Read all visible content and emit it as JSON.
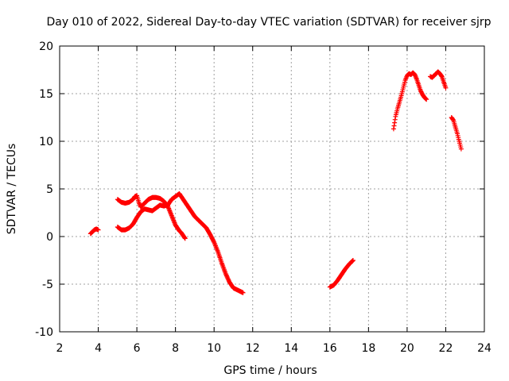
{
  "chart_data": {
    "type": "scatter",
    "title": "Day 010 of 2022, Sidereal Day-to-day VTEC variation (SDTVAR) for receiver sjrp",
    "xlabel": "GPS time / hours",
    "ylabel": "SDTVAR / TECUs",
    "xlim": [
      2,
      24
    ],
    "ylim": [
      -10,
      20
    ],
    "xticks": [
      2,
      4,
      6,
      8,
      10,
      12,
      14,
      16,
      18,
      20,
      22,
      24
    ],
    "yticks": [
      -10,
      -5,
      0,
      5,
      10,
      15,
      20
    ],
    "grid": true,
    "marker": "+",
    "color": "#ff0000",
    "series": [
      {
        "name": "arc-1",
        "x": [
          3.6,
          3.7,
          3.8,
          3.9,
          4.0
        ],
        "y": [
          0.3,
          0.5,
          0.7,
          0.8,
          0.7
        ]
      },
      {
        "name": "arc-2",
        "x": [
          5.0,
          5.2,
          5.4,
          5.6,
          5.8,
          5.9,
          6.0,
          6.1,
          6.2,
          6.4,
          6.6,
          6.8,
          7.0,
          7.2,
          7.4,
          7.6,
          7.8,
          8.0,
          8.2,
          8.3,
          8.4,
          8.5
        ],
        "y": [
          3.9,
          3.6,
          3.5,
          3.6,
          3.9,
          4.2,
          4.3,
          3.6,
          3.1,
          3.5,
          3.9,
          4.1,
          4.1,
          4.0,
          3.7,
          3.2,
          2.2,
          1.2,
          0.6,
          0.4,
          0.1,
          -0.2
        ]
      },
      {
        "name": "arc-3",
        "x": [
          5.0,
          5.2,
          5.4,
          5.6,
          5.8,
          6.0,
          6.2,
          6.4,
          6.6,
          6.8,
          7.0,
          7.2,
          7.4,
          7.6,
          7.8,
          8.0,
          8.2,
          8.4,
          8.6,
          8.8,
          9.0,
          9.2,
          9.4,
          9.6,
          9.8,
          10.0,
          10.2,
          10.4,
          10.6,
          10.8,
          11.0,
          11.2,
          11.5
        ],
        "y": [
          1.0,
          0.7,
          0.7,
          0.9,
          1.3,
          2.0,
          2.6,
          2.9,
          2.8,
          2.7,
          3.0,
          3.3,
          3.2,
          3.3,
          3.9,
          4.2,
          4.5,
          3.9,
          3.3,
          2.7,
          2.1,
          1.7,
          1.3,
          0.9,
          0.2,
          -0.6,
          -1.6,
          -2.8,
          -3.9,
          -4.8,
          -5.4,
          -5.6,
          -5.9
        ]
      },
      {
        "name": "arc-4",
        "x": [
          16.0,
          16.2,
          16.4,
          16.6,
          16.8,
          17.0,
          17.2
        ],
        "y": [
          -5.3,
          -5.1,
          -4.6,
          -4.0,
          -3.4,
          -2.9,
          -2.5
        ]
      },
      {
        "name": "arc-5",
        "x": [
          19.3,
          19.4,
          19.5,
          19.6,
          19.7,
          19.8,
          19.9,
          20.0,
          20.1,
          20.2,
          20.3,
          20.4,
          20.5,
          20.6,
          20.7,
          20.8,
          20.9,
          21.0
        ],
        "y": [
          11.3,
          12.6,
          13.4,
          14.1,
          14.8,
          15.6,
          16.4,
          16.9,
          17.1,
          17.0,
          17.2,
          17.0,
          16.5,
          15.9,
          15.3,
          14.9,
          14.6,
          14.4
        ]
      },
      {
        "name": "arc-6",
        "x": [
          21.2,
          21.3,
          21.4,
          21.5,
          21.6,
          21.7,
          21.8,
          21.9,
          22.0
        ],
        "y": [
          16.8,
          16.7,
          16.9,
          17.1,
          17.3,
          17.1,
          16.8,
          16.2,
          15.6
        ]
      },
      {
        "name": "arc-7",
        "x": [
          22.3,
          22.4,
          22.5,
          22.6,
          22.7,
          22.8
        ],
        "y": [
          12.5,
          12.2,
          11.5,
          10.8,
          10.0,
          9.2
        ]
      }
    ]
  }
}
